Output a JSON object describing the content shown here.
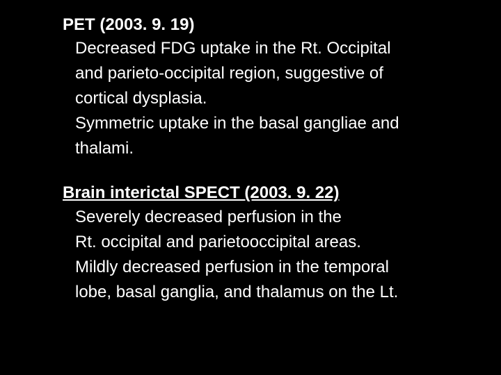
{
  "background_color": "#000000",
  "text_color": "#ffffff",
  "font_family": "Arial, Helvetica, sans-serif",
  "heading_fontsize": 24,
  "body_fontsize": 24,
  "sections": [
    {
      "heading": "PET (2003. 9. 19)",
      "underlined": false,
      "lines": [
        "Decreased FDG uptake in the Rt.  Occipital",
        "and parieto-occipital region,  suggestive of",
        "cortical dysplasia.",
        "Symmetric uptake in the basal gangliae and",
        "thalami."
      ]
    },
    {
      "heading": "Brain interictal SPECT (2003. 9. 22)",
      "underlined": true,
      "lines": [
        "Severely decreased perfusion in the",
        "Rt. occipital and parietooccipital areas.",
        "Mildly decreased perfusion in the temporal",
        "lobe, basal ganglia, and thalamus on the Lt."
      ]
    }
  ]
}
